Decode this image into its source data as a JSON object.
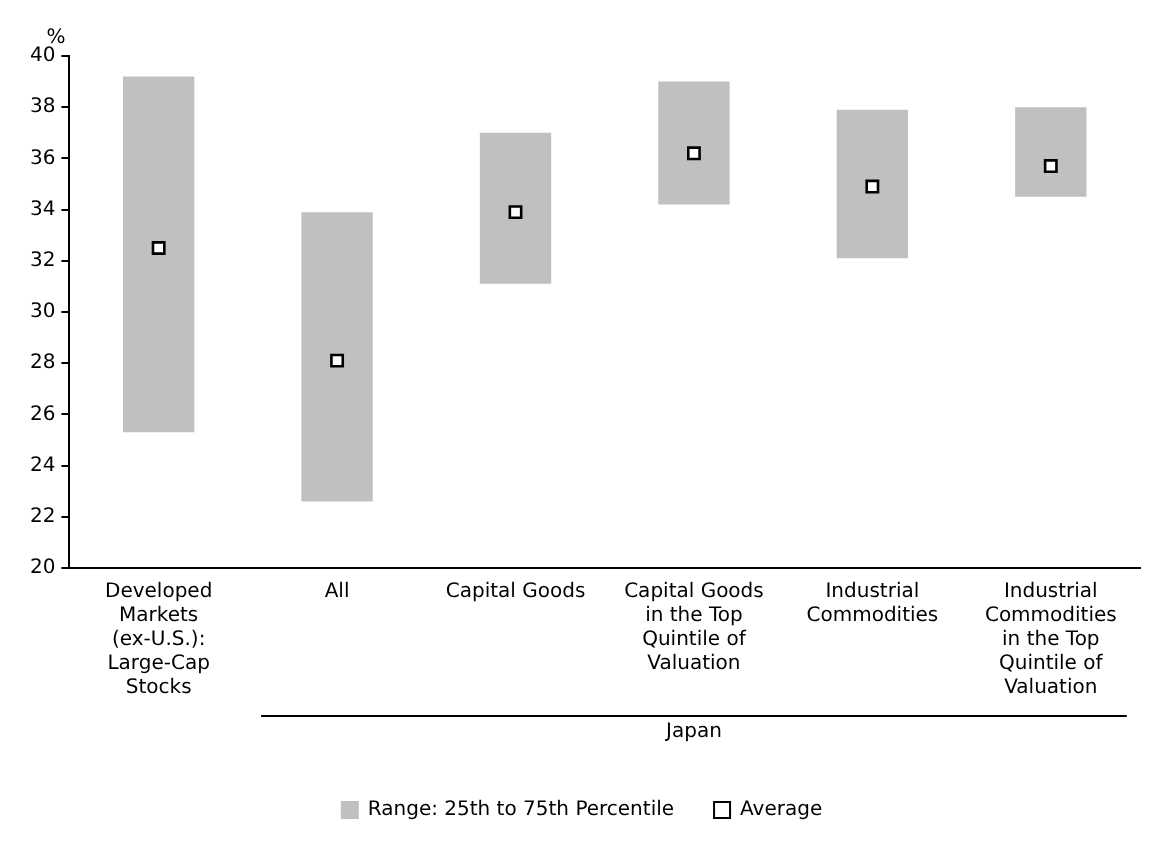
{
  "chart_data": {
    "type": "bar",
    "ylabel": "%",
    "categories": [
      "Developed Markets (ex-U.S.): Large-Cap Stocks",
      "All",
      "Capital Goods",
      "Capital Goods in the Top Quintile of Valuation",
      "Industrial Commodities",
      "Industrial Commodities in the Top Quintile of Valuation"
    ],
    "series": [
      {
        "name": "Range: 25th to 75th Percentile",
        "color": "#c0c0c0",
        "base": [
          25.3,
          22.6,
          31.1,
          34.2,
          32.1,
          34.5
        ],
        "values": [
          13.9,
          11.3,
          5.9,
          4.8,
          5.8,
          3.5
        ]
      },
      {
        "name": "Average",
        "type": "scatter",
        "color": "#000000",
        "marker": "square",
        "x": [
          "Developed Markets (ex-U.S.): Large-Cap Stocks",
          "All",
          "Capital Goods",
          "Capital Goods in the Top Quintile of Valuation",
          "Industrial Commodities",
          "Industrial Commodities in the Top Quintile of Valuation"
        ],
        "values": [
          32.5,
          28.1,
          33.9,
          36.2,
          34.9,
          35.7
        ]
      }
    ],
    "annotations": [
      "Japan"
    ],
    "ylim": [
      20,
      40
    ],
    "yticks": [
      20,
      22,
      24,
      26,
      28,
      30,
      32,
      34,
      36,
      38,
      40
    ],
    "grid": false,
    "legend": "bottom"
  }
}
